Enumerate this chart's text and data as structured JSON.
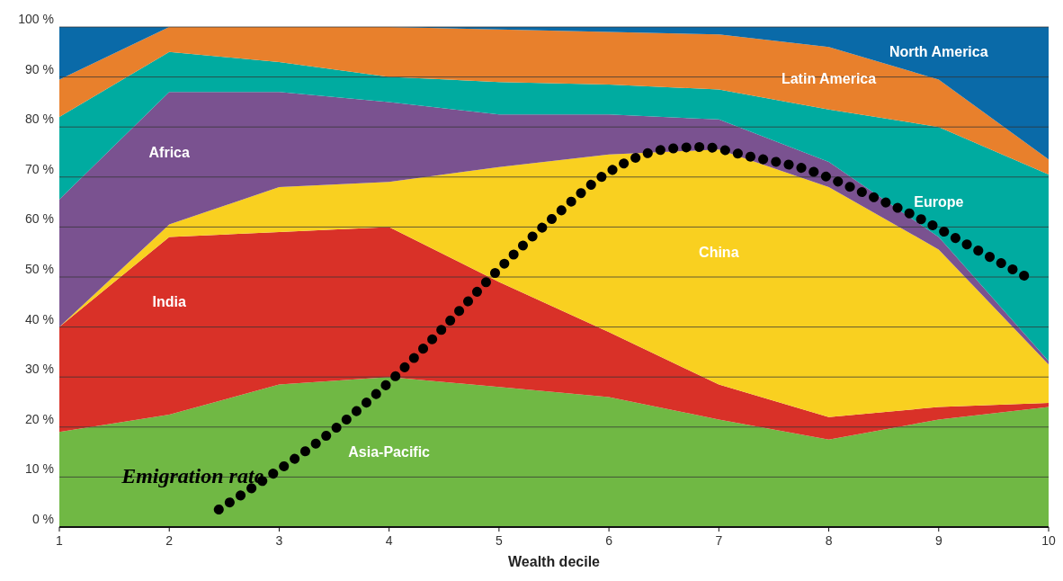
{
  "chart_data": {
    "type": "area",
    "stacked": true,
    "xlabel": "Wealth decile",
    "x": [
      1,
      2,
      3,
      4,
      5,
      6,
      7,
      8,
      9,
      10
    ],
    "xlim": [
      1,
      10
    ],
    "xticks": [
      1,
      2,
      3,
      4,
      5,
      6,
      7,
      8,
      9,
      10
    ],
    "ylim": [
      0,
      100
    ],
    "yticks": [
      {
        "value": 0,
        "label": "0 %"
      },
      {
        "value": 10,
        "label": "10 %"
      },
      {
        "value": 20,
        "label": "20 %"
      },
      {
        "value": 30,
        "label": "30 %"
      },
      {
        "value": 40,
        "label": "40 %"
      },
      {
        "value": 50,
        "label": "50 %"
      },
      {
        "value": 60,
        "label": "60 %"
      },
      {
        "value": 70,
        "label": "70 %"
      },
      {
        "value": 80,
        "label": "80 %"
      },
      {
        "value": 90,
        "label": "90 %"
      },
      {
        "value": 100,
        "label": "100 %"
      }
    ],
    "grid": "y",
    "series": [
      {
        "name": "Asia-Pacific",
        "color": "#70b844",
        "values": [
          19,
          22.5,
          28.5,
          30,
          28,
          26,
          21.5,
          17.5,
          21.5,
          24
        ]
      },
      {
        "name": "India",
        "color": "#d93128",
        "values": [
          21,
          35.5,
          30.5,
          30,
          21,
          13,
          7,
          4.5,
          2.5,
          0.8
        ]
      },
      {
        "name": "China",
        "color": "#f9d020",
        "values": [
          0,
          2.5,
          9,
          9,
          23,
          35.5,
          47,
          46,
          31.5,
          7.7
        ]
      },
      {
        "name": "Africa",
        "color": "#7a5290",
        "values": [
          25.5,
          26.5,
          19,
          16,
          10.5,
          8,
          6,
          5,
          2.5,
          0.7
        ]
      },
      {
        "name": "Europe",
        "color": "#00aba0",
        "values": [
          16.5,
          8,
          6,
          5,
          6.5,
          6,
          6,
          10.5,
          22,
          37.3
        ]
      },
      {
        "name": "Latin America",
        "color": "#e8802c",
        "values": [
          7.5,
          5,
          7,
          10,
          10.5,
          10.5,
          11,
          12.5,
          9.5,
          3
        ]
      },
      {
        "name": "North America",
        "color": "#0a6aa8",
        "values": [
          10.5,
          0,
          0,
          0,
          0.5,
          1,
          1.5,
          4,
          10.5,
          26.5
        ]
      },
      {
        "name": "Emigration rate",
        "type": "line",
        "color": "#000000",
        "line_style": "dotted",
        "marker": "none",
        "x": [
          2.45,
          2.9,
          3.5,
          4.05,
          4.5,
          4.95,
          5.5,
          6,
          6.5,
          6.85,
          7.3,
          7.8,
          8.3,
          8.8,
          9.3,
          9.8
        ],
        "values": [
          3.5,
          10,
          19.5,
          30,
          40,
          50.5,
          62,
          71,
          75.5,
          76,
          74,
          71.5,
          67,
          62,
          56,
          50
        ]
      }
    ]
  }
}
